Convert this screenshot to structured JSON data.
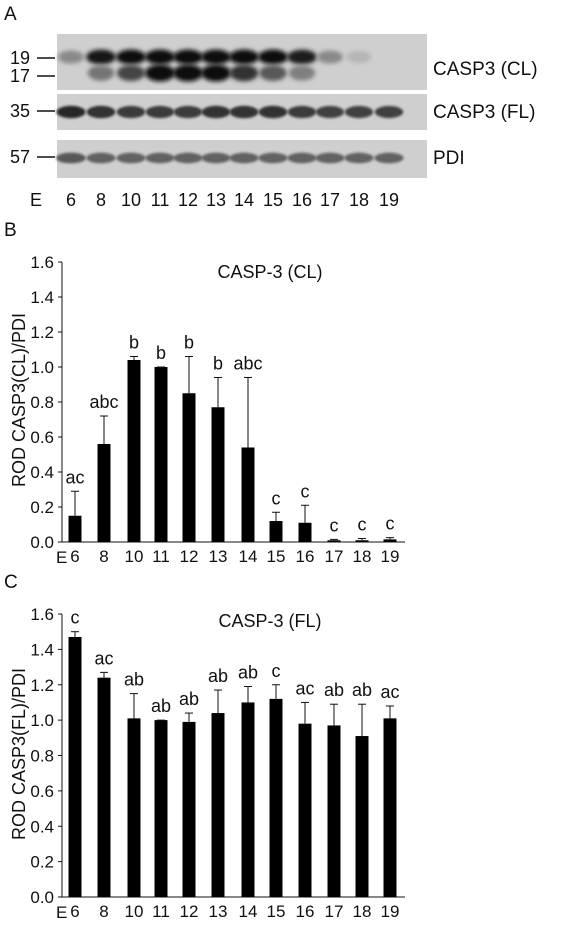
{
  "figure": {
    "panel_a": {
      "letter": "A",
      "lane_prefix": "E",
      "lanes": [
        "6",
        "8",
        "10",
        "11",
        "12",
        "13",
        "14",
        "15",
        "16",
        "17",
        "18",
        "19"
      ],
      "strips": [
        {
          "label": "CASP3 (CL)",
          "markers": [
            "19",
            "17"
          ]
        },
        {
          "label": "CASP3 (FL)",
          "markers": [
            "35"
          ]
        },
        {
          "label": "PDI",
          "markers": [
            "57"
          ]
        }
      ],
      "band_intensity": {
        "casp3_cl_19kda": [
          0.35,
          0.95,
          1.0,
          1.0,
          1.0,
          1.0,
          1.0,
          1.0,
          0.9,
          0.35,
          0.12,
          0.0
        ],
        "casp3_cl_17kda": [
          0.0,
          0.45,
          0.7,
          1.0,
          1.0,
          1.0,
          0.8,
          0.6,
          0.4,
          0.0,
          0.0,
          0.0
        ],
        "casp3_fl": [
          0.85,
          0.8,
          0.75,
          0.75,
          0.75,
          0.8,
          0.8,
          0.8,
          0.75,
          0.72,
          0.72,
          0.72
        ],
        "pdi": [
          0.6,
          0.55,
          0.55,
          0.55,
          0.55,
          0.55,
          0.55,
          0.55,
          0.55,
          0.55,
          0.55,
          0.55
        ]
      }
    }
  },
  "chart_data": [
    {
      "panel": "B",
      "type": "bar",
      "title": "CASP-3 (CL)",
      "xlabel": "",
      "x_prefix": "E",
      "ylabel": "ROD CASP3(CL)/PDI",
      "ylim": [
        0,
        1.6
      ],
      "yticks": [
        "0.0",
        "0.2",
        "0.4",
        "0.6",
        "0.8",
        "1.0",
        "1.2",
        "1.4",
        "1.6"
      ],
      "categories": [
        "6",
        "8",
        "10",
        "11",
        "12",
        "13",
        "14",
        "15",
        "16",
        "17",
        "18",
        "19"
      ],
      "values": [
        0.15,
        0.56,
        1.04,
        1.0,
        0.85,
        0.77,
        0.54,
        0.12,
        0.11,
        0.01,
        0.01,
        0.015
      ],
      "errors": [
        0.14,
        0.16,
        0.02,
        0.0,
        0.21,
        0.17,
        0.4,
        0.05,
        0.1,
        0.005,
        0.01,
        0.01
      ],
      "letters": [
        "ac",
        "abc",
        "b",
        "b",
        "b",
        "b",
        "abc",
        "c",
        "c",
        "c",
        "c",
        "c"
      ],
      "bar_color": "#000000",
      "grid": false
    },
    {
      "panel": "C",
      "type": "bar",
      "title": "CASP-3 (FL)",
      "xlabel": "",
      "x_prefix": "E",
      "ylabel": "ROD CASP3(FL)/PDI",
      "ylim": [
        0,
        1.6
      ],
      "yticks": [
        "0.0",
        "0.2",
        "0.4",
        "0.6",
        "0.8",
        "1.0",
        "1.2",
        "1.4",
        "1.6"
      ],
      "categories": [
        "6",
        "8",
        "10",
        "11",
        "12",
        "13",
        "14",
        "15",
        "16",
        "17",
        "18",
        "19"
      ],
      "values": [
        1.47,
        1.24,
        1.01,
        1.0,
        0.99,
        1.04,
        1.1,
        1.12,
        0.98,
        0.97,
        0.91,
        1.01
      ],
      "errors": [
        0.03,
        0.03,
        0.14,
        0.0,
        0.05,
        0.13,
        0.09,
        0.08,
        0.12,
        0.12,
        0.18,
        0.07
      ],
      "letters": [
        "c",
        "ac",
        "ab",
        "ab",
        "ab",
        "ab",
        "ab",
        "c",
        "ac",
        "ab",
        "ab",
        "ac"
      ],
      "bar_color": "#000000",
      "grid": false
    }
  ]
}
